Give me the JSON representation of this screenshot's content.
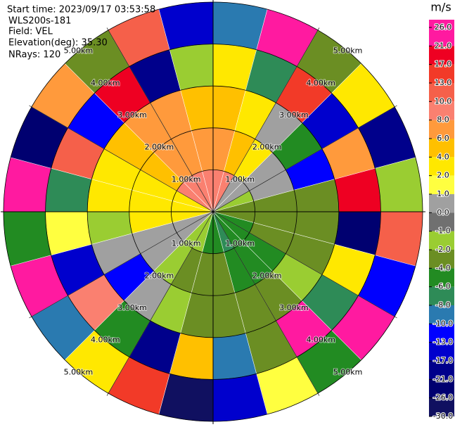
{
  "chart_data": {
    "type": "polar",
    "start_time": "Start time: 2023/09/17 03:53:58",
    "instrument": "WLS200s-181",
    "field": "Field: VEL",
    "elevation": "Elevation(deg): 35.30",
    "nrays": "NRays: 120",
    "colorbar_title": "m/s",
    "rlim": [
      0,
      5
    ],
    "rings": [
      {
        "value": 1,
        "label": "1.00km"
      },
      {
        "value": 2,
        "label": "2.00km"
      },
      {
        "value": 3,
        "label": "3.00km"
      },
      {
        "value": 4,
        "label": "4.00km"
      },
      {
        "value": 5,
        "label": "5.00km"
      }
    ],
    "levels": [
      {
        "value": 26,
        "label": "26.0"
      },
      {
        "value": 21,
        "label": "21.0"
      },
      {
        "value": 17,
        "label": "17.0"
      },
      {
        "value": 13,
        "label": "13.0"
      },
      {
        "value": 10,
        "label": "10.0"
      },
      {
        "value": 8,
        "label": "8.0"
      },
      {
        "value": 6,
        "label": "6.0"
      },
      {
        "value": 4,
        "label": "4.0"
      },
      {
        "value": 2,
        "label": "2.0"
      },
      {
        "value": 1,
        "label": "1.0"
      },
      {
        "value": 0,
        "label": "0.0"
      },
      {
        "value": -1,
        "label": "-1.0"
      },
      {
        "value": -2,
        "label": "-2.0"
      },
      {
        "value": -4,
        "label": "-4.0"
      },
      {
        "value": -6,
        "label": "-6.0"
      },
      {
        "value": -8,
        "label": "-8.0"
      },
      {
        "value": -10,
        "label": "-10.0"
      },
      {
        "value": -13,
        "label": "-13.0"
      },
      {
        "value": -17,
        "label": "-17.0"
      },
      {
        "value": -21,
        "label": "-21.0"
      },
      {
        "value": -26,
        "label": "-26.0"
      },
      {
        "value": -30,
        "label": "-30.0"
      }
    ],
    "colors": [
      "#ff1aa0",
      "#ee0022",
      "#f23a28",
      "#f5604a",
      "#fa8070",
      "#ff9a3c",
      "#ffc000",
      "#ffe800",
      "#ffff40",
      "#a0a0a0",
      "#707070",
      "#9acd32",
      "#6b8e23",
      "#228b22",
      "#2e8b57",
      "#2a7ab0",
      "#0000ff",
      "#0000cd",
      "#00008b",
      "#000070",
      "#101060"
    ],
    "values": [
      [
        9,
        7,
        5,
        3,
        -10
      ],
      [
        9,
        5,
        3,
        -8,
        21
      ],
      [
        0.5,
        3,
        0.5,
        13,
        -4
      ],
      [
        0.5,
        0.5,
        -6,
        -17,
        3
      ],
      [
        -1.5,
        0.5,
        -13,
        6,
        -21
      ],
      [
        -3,
        -3,
        -3,
        17,
        -1.5
      ],
      [
        -3,
        -3,
        -3,
        -26,
        10
      ],
      [
        -5,
        -3,
        -3,
        3,
        -13
      ],
      [
        -5,
        -5,
        -1.5,
        -8,
        26
      ],
      [
        -5,
        -5,
        -3,
        21,
        -6
      ],
      [
        -7,
        -5,
        -3,
        -3,
        1.5
      ],
      [
        -5,
        -3,
        -3,
        -10,
        -17
      ],
      [
        -5,
        -3,
        -3,
        5,
        -28
      ],
      [
        -1.5,
        -3,
        -1.5,
        -21,
        13
      ],
      [
        -1.5,
        -1.5,
        0.5,
        -5,
        3
      ],
      [
        0.5,
        0.5,
        -13,
        9,
        -10
      ],
      [
        0.5,
        0.5,
        0.5,
        -17,
        21
      ],
      [
        3,
        3,
        -1.5,
        1.5,
        -6
      ],
      [
        3,
        3,
        3,
        -8,
        23
      ],
      [
        3,
        3,
        3,
        12,
        -26
      ],
      [
        9,
        5,
        5,
        -13,
        7
      ],
      [
        9,
        7,
        7,
        19,
        -3
      ],
      [
        9,
        7,
        7,
        -21,
        11
      ],
      [
        9,
        7,
        5,
        -1.5,
        -14
      ]
    ]
  }
}
